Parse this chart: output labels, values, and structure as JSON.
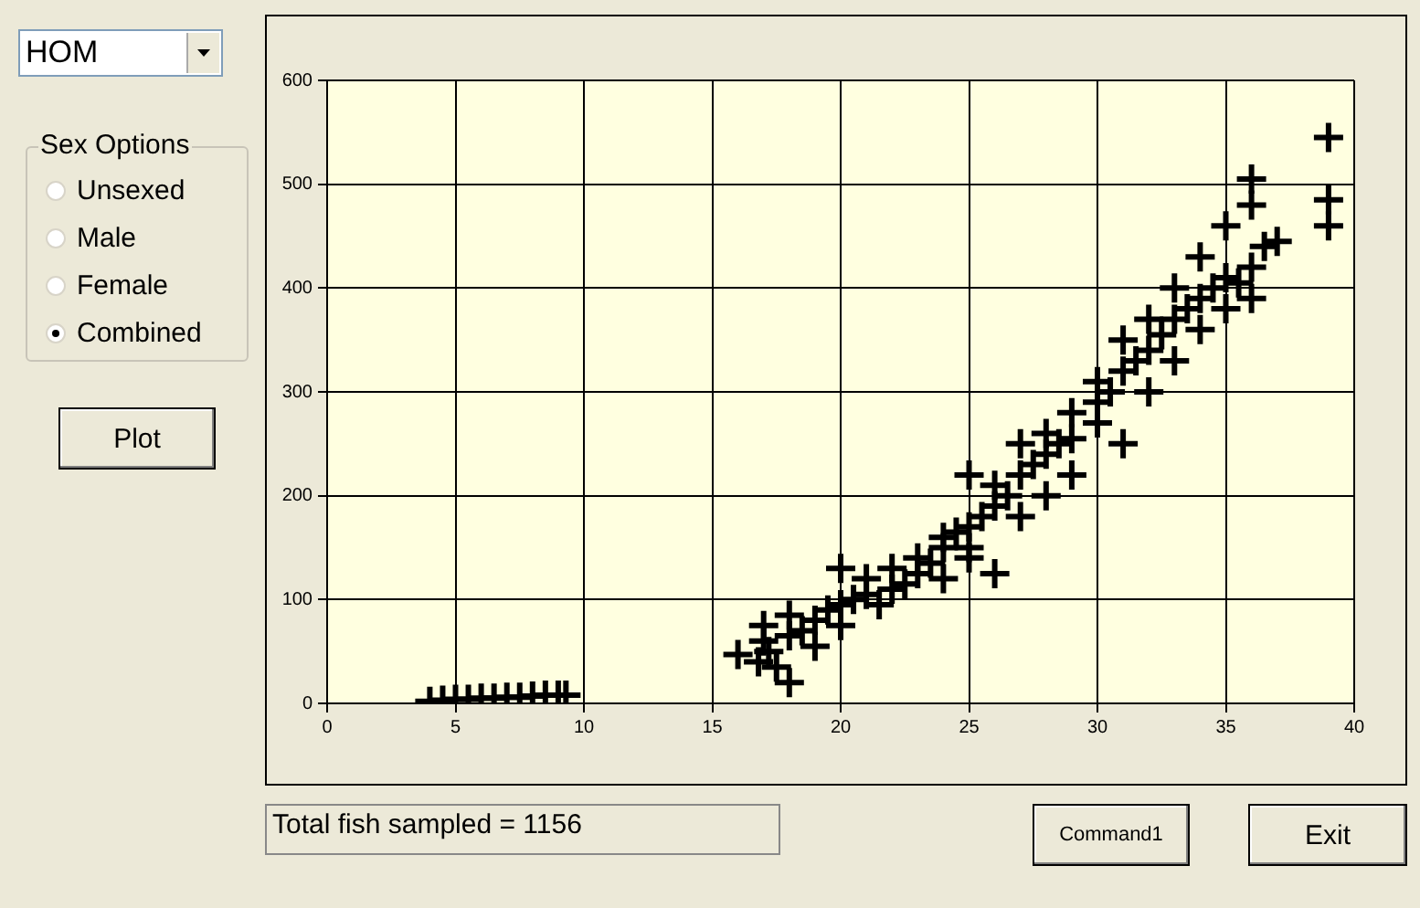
{
  "chart_data": {
    "type": "scatter",
    "color": "#000000",
    "marker": "cross",
    "grid": true,
    "xlim": [
      0,
      40
    ],
    "ylim": [
      0,
      600
    ],
    "xticks": [
      0,
      5,
      10,
      15,
      20,
      25,
      30,
      35,
      40
    ],
    "yticks": [
      0,
      100,
      200,
      300,
      400,
      500,
      600
    ],
    "x": [
      4,
      4.5,
      5,
      5.5,
      6,
      6.5,
      7,
      7.5,
      8,
      8.5,
      9,
      9.3,
      16,
      16.8,
      17,
      17,
      17.2,
      17.5,
      18,
      18,
      18,
      18.5,
      19,
      19,
      19.5,
      20,
      20,
      20,
      20.5,
      21,
      21,
      21.5,
      22,
      22,
      22.5,
      23,
      23,
      23.5,
      24,
      24,
      24,
      24.5,
      25,
      25,
      25,
      25,
      25.5,
      26,
      26,
      26,
      26.5,
      27,
      27,
      27,
      27.5,
      28,
      28,
      28,
      28.5,
      29,
      29,
      29,
      30,
      30,
      30,
      30.5,
      31,
      31,
      31,
      31.5,
      32,
      32,
      32,
      32.5,
      33,
      33,
      33,
      33.5,
      34,
      34,
      34,
      34.5,
      35,
      35,
      35,
      35.5,
      36,
      36,
      36,
      36,
      36.5,
      37,
      39,
      39,
      39
    ],
    "values": [
      2,
      3,
      4,
      4,
      5,
      5,
      6,
      6,
      7,
      8,
      8,
      8,
      47,
      40,
      60,
      75,
      50,
      35,
      20,
      65,
      85,
      70,
      80,
      55,
      90,
      95,
      130,
      75,
      100,
      105,
      120,
      95,
      110,
      130,
      115,
      125,
      140,
      135,
      150,
      160,
      120,
      165,
      170,
      150,
      220,
      140,
      180,
      190,
      125,
      210,
      200,
      220,
      180,
      250,
      230,
      240,
      260,
      200,
      250,
      255,
      280,
      220,
      290,
      270,
      310,
      300,
      320,
      350,
      250,
      330,
      340,
      370,
      300,
      355,
      370,
      400,
      330,
      380,
      390,
      430,
      360,
      400,
      410,
      460,
      380,
      405,
      420,
      505,
      480,
      390,
      440,
      445,
      545,
      485,
      460
    ],
    "annotations": [
      "HOM",
      "Sex Options",
      "Unsexed",
      "Male",
      "Female",
      "Combined",
      "Plot",
      "Total fish sampled = 1156",
      "Command1",
      "Exit"
    ]
  }
}
